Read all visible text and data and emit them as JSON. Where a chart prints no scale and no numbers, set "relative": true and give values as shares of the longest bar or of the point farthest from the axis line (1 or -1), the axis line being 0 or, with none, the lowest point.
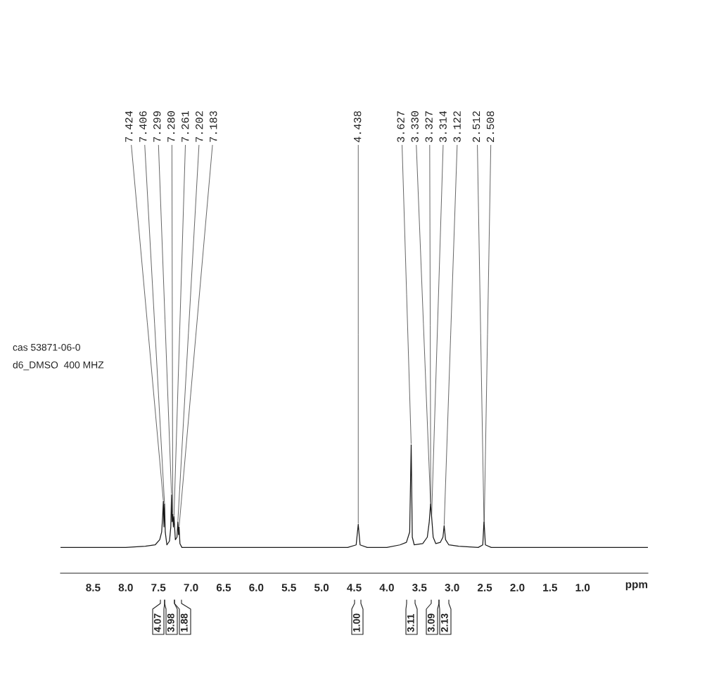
{
  "chart_data": {
    "type": "line",
    "relative": true,
    "xlabel": "ppm",
    "xlim": [
      9.0,
      0.0
    ],
    "xticks": [
      8.5,
      {
        "value": 8,
        "label": "8.0"
      },
      7.5,
      {
        "value": 7,
        "label": "7.0"
      },
      6.5,
      {
        "value": 6,
        "label": "6.0"
      },
      5.5,
      {
        "value": 5,
        "label": "5.0"
      },
      4.5,
      {
        "value": 4,
        "label": "4.0"
      },
      3.5,
      {
        "value": 3,
        "label": "3.0"
      },
      2.5,
      {
        "value": 2,
        "label": "2.0"
      },
      1.5,
      {
        "value": 1,
        "label": "1.0"
      }
    ],
    "grid": false,
    "legend": false,
    "marker": "none",
    "line_style": "solid",
    "series": [
      {
        "color": "#1a1a1a",
        "x": [
          9.0,
          8.0,
          7.7,
          7.55,
          7.48,
          7.45,
          7.435,
          7.424,
          7.415,
          7.406,
          7.395,
          7.37,
          7.33,
          7.31,
          7.299,
          7.29,
          7.28,
          7.27,
          7.261,
          7.24,
          7.215,
          7.202,
          7.192,
          7.183,
          7.17,
          7.14,
          7.0,
          6.0,
          5.0,
          4.6,
          4.47,
          4.438,
          4.41,
          4.3,
          4.0,
          3.8,
          3.7,
          3.65,
          3.627,
          3.61,
          3.58,
          3.45,
          3.38,
          3.35,
          3.33,
          3.327,
          3.314,
          3.29,
          3.25,
          3.18,
          3.14,
          3.122,
          3.1,
          3.05,
          2.9,
          2.6,
          2.53,
          2.512,
          2.508,
          2.49,
          2.4,
          2.0,
          1.0,
          0.0
        ],
        "values": [
          0.2,
          0.2,
          0.21,
          0.22,
          0.26,
          0.32,
          0.44,
          0.56,
          0.36,
          0.54,
          0.32,
          0.22,
          0.25,
          0.36,
          0.61,
          0.4,
          0.46,
          0.36,
          0.44,
          0.26,
          0.28,
          0.4,
          0.3,
          0.36,
          0.23,
          0.2,
          0.2,
          0.2,
          0.2,
          0.2,
          0.22,
          0.38,
          0.22,
          0.2,
          0.2,
          0.22,
          0.24,
          0.32,
          1.0,
          0.28,
          0.22,
          0.23,
          0.28,
          0.4,
          0.54,
          0.52,
          0.44,
          0.28,
          0.23,
          0.24,
          0.28,
          0.37,
          0.26,
          0.22,
          0.21,
          0.2,
          0.22,
          0.4,
          0.38,
          0.22,
          0.2,
          0.2,
          0.2,
          0.2
        ]
      }
    ],
    "annotations": [
      "cas 53871-06-0",
      "d6_DMSO  400 MHZ",
      {
        "text": "7.424",
        "x": 7.424,
        "y": 0.56
      },
      {
        "text": "7.406",
        "x": 7.406,
        "y": 0.54
      },
      {
        "text": "7.299",
        "x": 7.299,
        "y": 0.61
      },
      {
        "text": "7.280",
        "x": 7.28,
        "y": 0.46
      },
      {
        "text": "7.261",
        "x": 7.261,
        "y": 0.44
      },
      {
        "text": "7.202",
        "x": 7.202,
        "y": 0.4
      },
      {
        "text": "7.183",
        "x": 7.183,
        "y": 0.36
      },
      {
        "text": "4.438",
        "x": 4.438,
        "y": 0.38
      },
      {
        "text": "3.627",
        "x": 3.627,
        "y": 1.0
      },
      {
        "text": "3.330",
        "x": 3.33,
        "y": 0.54
      },
      {
        "text": "3.327",
        "x": 3.327,
        "y": 0.52
      },
      {
        "text": "3.314",
        "x": 3.314,
        "y": 0.44
      },
      {
        "text": "3.122",
        "x": 3.122,
        "y": 0.37
      },
      {
        "text": "2.512",
        "x": 2.512,
        "y": 0.4
      },
      {
        "text": "2.508",
        "x": 2.508,
        "y": 0.38
      },
      "4.07",
      "3.98",
      "1.88",
      "1.00",
      "3.11",
      "3.09",
      "2.13"
    ]
  }
}
